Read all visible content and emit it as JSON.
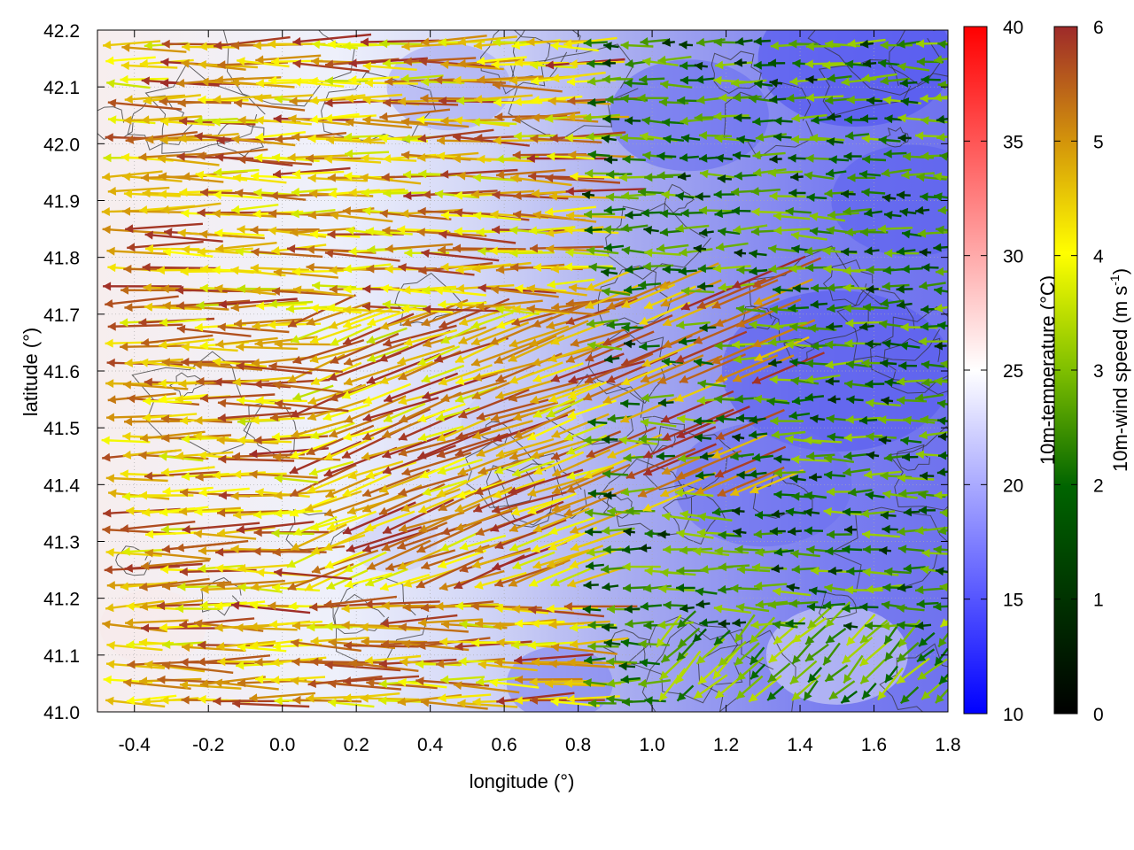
{
  "chart_data": {
    "type": "heatmap",
    "title": "",
    "xlabel": "longitude (°)",
    "ylabel": "latitude (°)",
    "xlim": [
      -0.5,
      1.8
    ],
    "ylim": [
      41.0,
      42.2
    ],
    "xticks": [
      "-0.4",
      "-0.2",
      "0.0",
      "0.2",
      "0.4",
      "0.6",
      "0.8",
      "1.0",
      "1.2",
      "1.4",
      "1.6",
      "1.8"
    ],
    "yticks": [
      "41.0",
      "41.1",
      "41.2",
      "41.3",
      "41.4",
      "41.5",
      "41.6",
      "41.7",
      "41.8",
      "41.9",
      "42.0",
      "42.1",
      "42.2"
    ],
    "grid": true,
    "temperature_colorbar": {
      "label": "10m-temperature (°C)",
      "range": [
        10,
        40
      ],
      "ticks": [
        "10",
        "15",
        "20",
        "25",
        "30",
        "35",
        "40"
      ],
      "colors": [
        "#0000ff",
        "#ffffff",
        "#ff0000"
      ]
    },
    "wind_colorbar": {
      "label_main": "10m-wind speed (m s",
      "label_sup": "-1",
      "label_end": ")",
      "range": [
        0,
        6
      ],
      "ticks": [
        "0",
        "1",
        "2",
        "3",
        "4",
        "5",
        "6"
      ],
      "colors": [
        "#000000",
        "#006400",
        "#7fbf00",
        "#ffff00",
        "#d4960a",
        "#9e2a2a"
      ]
    },
    "temperature_field_description_regions": [
      {
        "lon": [
          -0.5,
          0.4
        ],
        "temp": 23
      },
      {
        "lon": [
          0.4,
          0.9
        ],
        "temp": 20
      },
      {
        "lon": [
          0.9,
          1.8
        ],
        "temp": 16
      }
    ],
    "wind_field": {
      "west_sector": {
        "lon": [
          -0.5,
          0.8
        ],
        "direction": "from east",
        "speed_range": [
          3,
          6
        ]
      },
      "east_sector": {
        "lon": [
          0.9,
          1.8
        ],
        "direction": "from east",
        "speed_range": [
          0.5,
          2.5
        ]
      },
      "south_east_sector": {
        "lon": [
          1.1,
          1.8
        ],
        "lat": [
          41.0,
          41.15
        ],
        "direction": "from south-east",
        "speed_range": [
          1,
          3
        ]
      }
    }
  }
}
